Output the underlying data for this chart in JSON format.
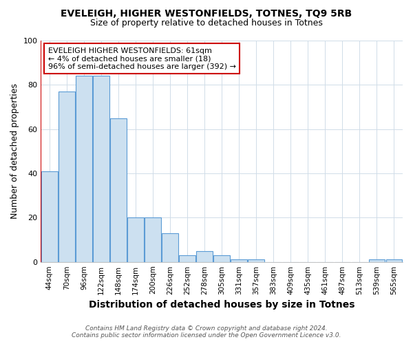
{
  "title": "EVELEIGH, HIGHER WESTONFIELDS, TOTNES, TQ9 5RB",
  "subtitle": "Size of property relative to detached houses in Totnes",
  "xlabel": "Distribution of detached houses by size in Totnes",
  "ylabel": "Number of detached properties",
  "bin_labels": [
    "44sqm",
    "70sqm",
    "96sqm",
    "122sqm",
    "148sqm",
    "174sqm",
    "200sqm",
    "226sqm",
    "252sqm",
    "278sqm",
    "305sqm",
    "331sqm",
    "357sqm",
    "383sqm",
    "409sqm",
    "435sqm",
    "461sqm",
    "487sqm",
    "513sqm",
    "539sqm",
    "565sqm"
  ],
  "bar_heights": [
    41,
    77,
    84,
    84,
    65,
    20,
    20,
    13,
    3,
    5,
    3,
    1,
    1,
    0,
    0,
    0,
    0,
    0,
    0,
    1,
    1
  ],
  "bar_color": "#cce0f0",
  "bar_edge_color": "#5b9bd5",
  "ylim": [
    0,
    100
  ],
  "yticks": [
    0,
    20,
    40,
    60,
    80,
    100
  ],
  "red_line_x": -0.5,
  "red_line_color": "#cc0000",
  "annotation_text": "EVELEIGH HIGHER WESTONFIELDS: 61sqm\n← 4% of detached houses are smaller (18)\n96% of semi-detached houses are larger (392) →",
  "annotation_box_color": "#ffffff",
  "annotation_box_edge": "#cc0000",
  "footer_text": "Contains HM Land Registry data © Crown copyright and database right 2024.\nContains public sector information licensed under the Open Government Licence v3.0.",
  "background_color": "#ffffff",
  "plot_bg_color": "#ffffff",
  "grid_color": "#d0dce8",
  "title_fontsize": 10,
  "subtitle_fontsize": 9,
  "axis_label_fontsize": 9,
  "xlabel_fontsize": 10
}
